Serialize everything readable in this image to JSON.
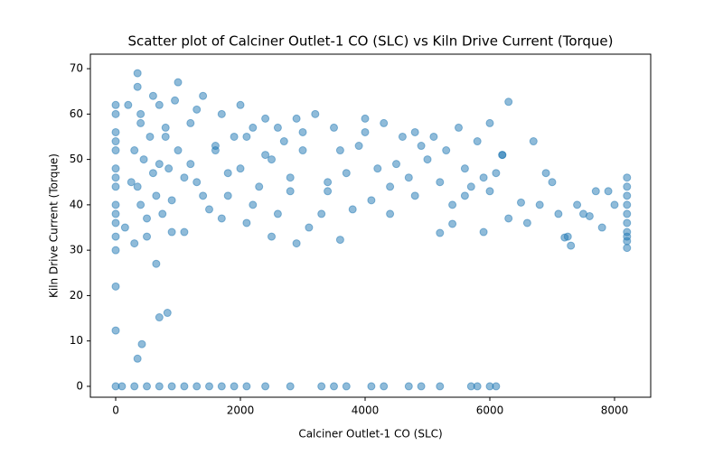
{
  "chart_data": {
    "type": "scatter",
    "title": "Scatter plot of Calciner Outlet-1 CO (SLC) vs Kiln Drive Current (Torque)",
    "x_label": "Calciner Outlet-1 CO (SLC)",
    "y_label": "Kiln Drive Current (Torque)",
    "color": "#1f77b4",
    "xlim": [
      -406,
      8580
    ],
    "ylim": [
      -2.4,
      73.2
    ],
    "xticks": [
      0,
      2000,
      4000,
      6000,
      8000
    ],
    "yticks": [
      0,
      10,
      20,
      30,
      40,
      50,
      60,
      70
    ],
    "x": [
      0,
      0,
      0,
      0,
      0,
      0,
      0,
      0,
      0,
      0,
      0,
      0,
      0,
      0,
      0,
      0,
      150,
      200,
      250,
      300,
      350,
      350,
      400,
      400,
      450,
      500,
      550,
      600,
      650,
      700,
      750,
      800,
      850,
      900,
      950,
      1000,
      300,
      350,
      400,
      500,
      600,
      700,
      800,
      900,
      1000,
      1100,
      1100,
      1200,
      1300,
      1400,
      1500,
      1600,
      1700,
      1800,
      1900,
      2000,
      2100,
      2200,
      2300,
      2400,
      2500,
      2600,
      2700,
      2800,
      2900,
      3000,
      1200,
      1400,
      1600,
      1800,
      2000,
      2200,
      2400,
      2600,
      2800,
      3000,
      1300,
      1700,
      2100,
      2500,
      2900,
      3200,
      3400,
      3600,
      3800,
      4000,
      4200,
      4400,
      4600,
      4800,
      5000,
      3300,
      3500,
      3700,
      3900,
      4100,
      4300,
      4500,
      4700,
      4900,
      3100,
      3600,
      4000,
      4400,
      4800,
      3400,
      5100,
      5200,
      5300,
      5400,
      5500,
      5600,
      5700,
      5800,
      5900,
      6000,
      6100,
      6200,
      6300,
      6300,
      5200,
      5600,
      6000,
      5400,
      5900,
      6200,
      6600,
      6700,
      6800,
      6900,
      7000,
      7100,
      7200,
      7300,
      7400,
      7500,
      7600,
      7700,
      7800,
      7900,
      8000,
      6500,
      7250,
      8200,
      8200,
      8200,
      8200,
      8200,
      8200,
      8200,
      8200,
      8200,
      8200,
      700,
      830,
      420,
      350,
      100,
      300,
      500,
      700,
      900,
      1100,
      1300,
      1500,
      1700,
      1900,
      2100,
      2400,
      2800,
      3300,
      3500,
      3700,
      4100,
      4300,
      4700,
      4900,
      5200,
      5700,
      5800,
      6000,
      6100,
      650
    ],
    "y": [
      30,
      33,
      36,
      40,
      44,
      48,
      52,
      56,
      60,
      62,
      22,
      12.3,
      0,
      38,
      46,
      54,
      35,
      62,
      45,
      31.5,
      66,
      69,
      40,
      58,
      50,
      33,
      55,
      47,
      42,
      62,
      38,
      57,
      48,
      34,
      63,
      52,
      52,
      44,
      60,
      37,
      64,
      49,
      55,
      41,
      67,
      46,
      34,
      58,
      45,
      64,
      39,
      52,
      60,
      42,
      55,
      48,
      36,
      57,
      44,
      59,
      50,
      38,
      54,
      46,
      31.5,
      56,
      49,
      42,
      53,
      47,
      62,
      40,
      51,
      57,
      43,
      52,
      61,
      37,
      55,
      33,
      59,
      60,
      45,
      52,
      39,
      56,
      48,
      44,
      55,
      42,
      50,
      38,
      57,
      47,
      53,
      41,
      58,
      49,
      46,
      53,
      35,
      32.3,
      59,
      38,
      56,
      43,
      55,
      45,
      52,
      40,
      57,
      48,
      44,
      54,
      34,
      58,
      47,
      51,
      62.7,
      37,
      33.8,
      42,
      43,
      35.8,
      46,
      51,
      36,
      54,
      40,
      47,
      45,
      38,
      32.8,
      31,
      40,
      38,
      37.5,
      43,
      35,
      43,
      40,
      40.5,
      33,
      30.5,
      32,
      34,
      36,
      38,
      40,
      42,
      44,
      46,
      33,
      15.2,
      16.2,
      9.3,
      6.1,
      0,
      0,
      0,
      0,
      0,
      0,
      0,
      0,
      0,
      0,
      0,
      0,
      0,
      0,
      0,
      0,
      0,
      0,
      0,
      0,
      0,
      0,
      0,
      0,
      0,
      27
    ]
  }
}
